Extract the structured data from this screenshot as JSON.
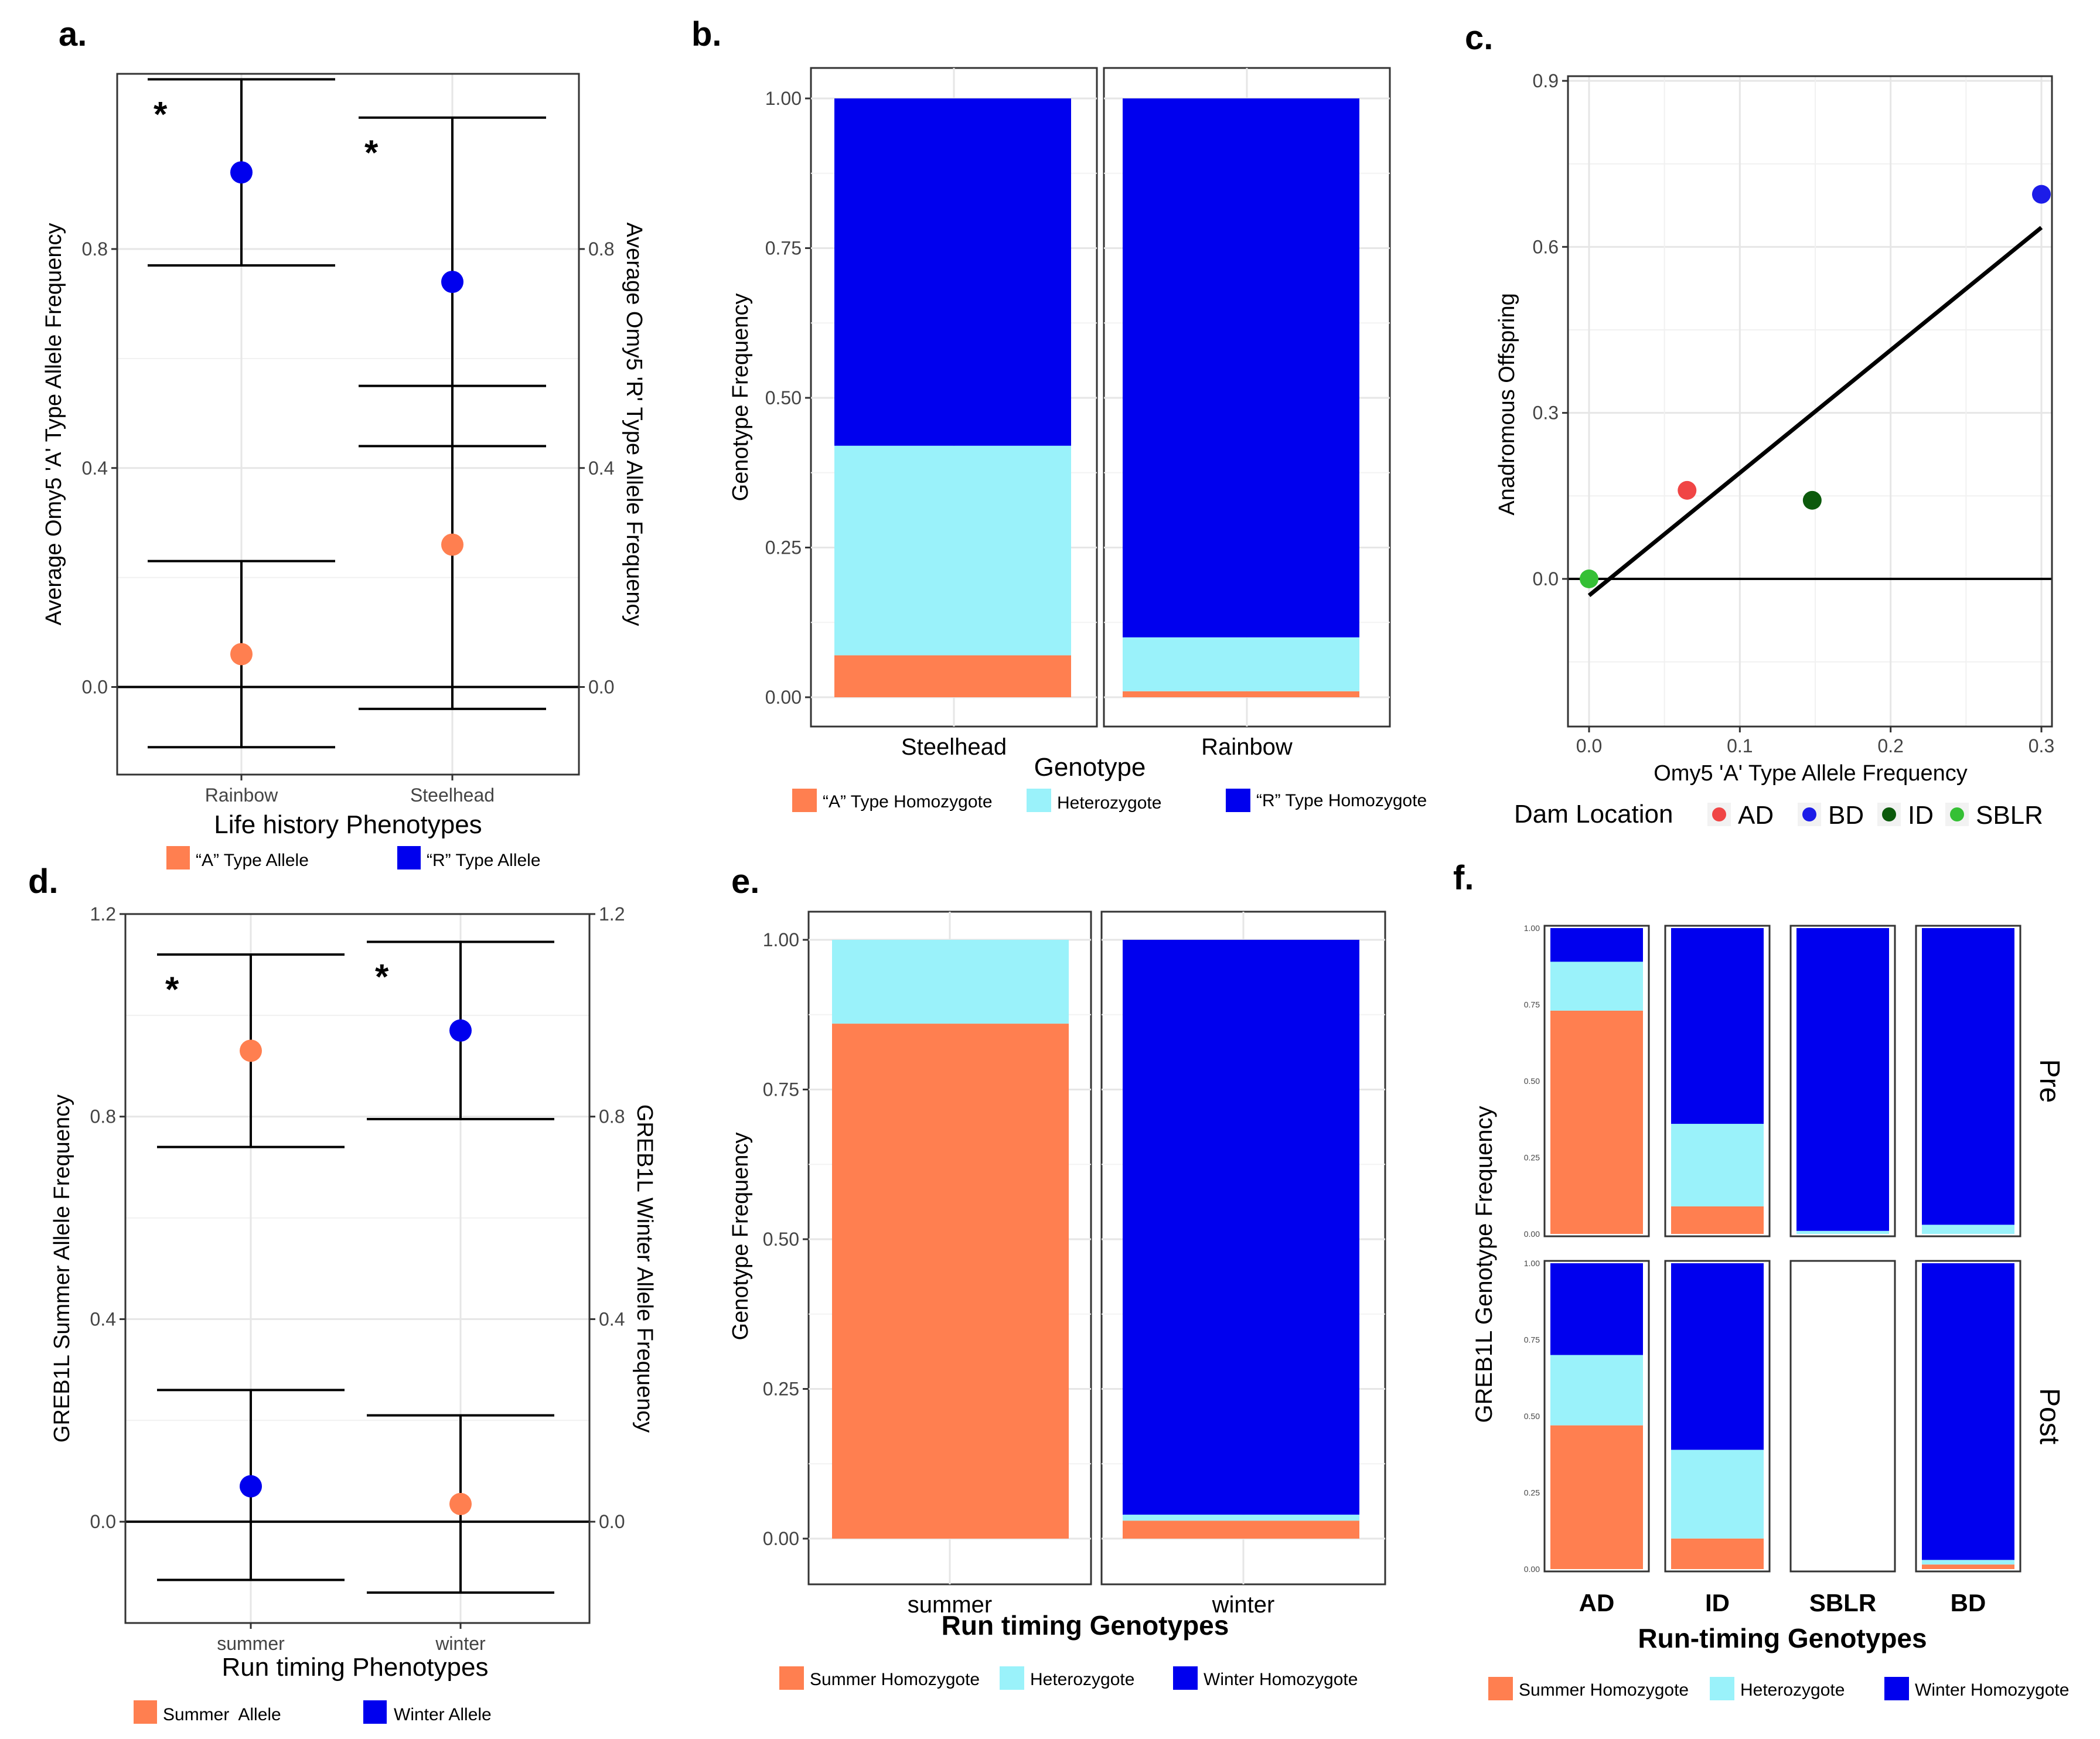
{
  "colors": {
    "orange": "#FF7F50",
    "cyan": "#9AF2FA",
    "blue": "#0000EE",
    "dam_AD": "#F04545",
    "dam_BD": "#1C1CE8",
    "dam_ID": "#0C5A0C",
    "dam_SBLR": "#35C035",
    "grid": "#E6E6E6"
  },
  "panel_labels": {
    "a": "a.",
    "b": "b.",
    "c": "c.",
    "d": "d.",
    "e": "e.",
    "f": "f."
  },
  "chart_data": [
    {
      "id": "a",
      "type": "scatter",
      "subtype": "points-with-error-bars",
      "xlabel": "Life history Phenotypes",
      "ylabel_left": "Average Omy5 'A' Type Allele Frequency",
      "ylabel_right": "Average Omy5 'R' Type Allele Frequency",
      "categories": [
        "Rainbow",
        "Steelhead"
      ],
      "yticks": [
        "0.0",
        "0.4",
        "0.8"
      ],
      "ylim": [
        -0.16,
        1.12
      ],
      "series": [
        {
          "name": "“A” Type Allele",
          "color_key": "orange",
          "values": [
            0.06,
            0.26
          ],
          "ci_low": [
            -0.11,
            -0.04
          ],
          "ci_high": [
            0.23,
            0.55
          ]
        },
        {
          "name": "“R” Type Allele",
          "color_key": "blue",
          "values": [
            0.94,
            0.74
          ],
          "ci_low": [
            0.77,
            0.44
          ],
          "ci_high": [
            1.11,
            1.04
          ]
        }
      ],
      "significance": [
        "*",
        "*"
      ],
      "legend": [
        {
          "label": "“A” Type Allele",
          "color_key": "orange"
        },
        {
          "label": "“R” Type Allele",
          "color_key": "blue"
        }
      ]
    },
    {
      "id": "b",
      "type": "bar",
      "subtype": "stacked-100",
      "xlabel": "Genotype",
      "ylabel": "Genotype Frequency",
      "facets": [
        "Steelhead",
        "Rainbow"
      ],
      "yticks": [
        "0.00",
        "0.25",
        "0.50",
        "0.75",
        "1.00"
      ],
      "ylim": [
        0,
        1
      ],
      "series": [
        {
          "name": "“A” Type Homozygote",
          "color_key": "orange",
          "values": [
            0.07,
            0.01
          ]
        },
        {
          "name": "Heterozygote",
          "color_key": "cyan",
          "values": [
            0.35,
            0.09
          ]
        },
        {
          "name": "“R” Type Homozygote",
          "color_key": "blue",
          "values": [
            0.58,
            0.9
          ]
        }
      ],
      "legend": [
        {
          "label": "“A” Type Homozygote",
          "color_key": "orange"
        },
        {
          "label": "Heterozygote",
          "color_key": "cyan"
        },
        {
          "label": "“R” Type Homozygote",
          "color_key": "blue"
        }
      ]
    },
    {
      "id": "c",
      "type": "scatter",
      "xlabel": "Omy5 'A' Type Allele Frequency",
      "ylabel": "Anadromous Offspring",
      "xlim": [
        -0.015,
        0.31
      ],
      "ylim": [
        -0.25,
        0.91
      ],
      "xticks": [
        "0.0",
        "0.1",
        "0.2",
        "0.3"
      ],
      "yticks": [
        "0.0",
        "0.3",
        "0.6",
        "0.9"
      ],
      "points": [
        {
          "label": "AD",
          "x": 0.065,
          "y": 0.16,
          "color_key": "dam_AD"
        },
        {
          "label": "BD",
          "x": 0.3,
          "y": 0.695,
          "color_key": "dam_BD"
        },
        {
          "label": "ID",
          "x": 0.148,
          "y": 0.142,
          "color_key": "dam_ID"
        },
        {
          "label": "SBLR",
          "x": 0.0,
          "y": 0.0,
          "color_key": "dam_SBLR"
        }
      ],
      "fit_line": {
        "x": [
          0.0,
          0.3
        ],
        "y": [
          -0.03,
          0.635
        ]
      },
      "legend_title": "Dam Location",
      "legend": [
        {
          "label": "AD",
          "color_key": "dam_AD"
        },
        {
          "label": "BD",
          "color_key": "dam_BD"
        },
        {
          "label": "ID",
          "color_key": "dam_ID"
        },
        {
          "label": "SBLR",
          "color_key": "dam_SBLR"
        }
      ]
    },
    {
      "id": "d",
      "type": "scatter",
      "subtype": "points-with-error-bars",
      "xlabel": "Run timing Phenotypes",
      "ylabel_left": "GREB1L Summer Allele Frequency",
      "ylabel_right": "GREB1L Winter Allele Frequency",
      "categories": [
        "summer",
        "winter"
      ],
      "yticks": [
        "0.0",
        "0.4",
        "0.8",
        "1.2"
      ],
      "ylim": [
        -0.2,
        1.2
      ],
      "series": [
        {
          "name": "Summer Allele",
          "color_key": "orange",
          "values": [
            0.93,
            0.035
          ],
          "ci_low": [
            0.74,
            -0.14
          ],
          "ci_high": [
            1.12,
            0.21
          ]
        },
        {
          "name": "Winter Allele",
          "color_key": "blue",
          "values": [
            0.07,
            0.97
          ],
          "ci_low": [
            -0.115,
            0.795
          ],
          "ci_high": [
            0.26,
            1.145
          ]
        }
      ],
      "significance": [
        "*",
        "*"
      ],
      "legend": [
        {
          "label": "Summer  Allele",
          "color_key": "orange"
        },
        {
          "label": "Winter Allele",
          "color_key": "blue"
        }
      ]
    },
    {
      "id": "e",
      "type": "bar",
      "subtype": "stacked-100",
      "xlabel": "Run timing Genotypes",
      "ylabel": "Genotype Frequency",
      "facets": [
        "summer",
        "winter"
      ],
      "yticks": [
        "0.00",
        "0.25",
        "0.50",
        "0.75",
        "1.00"
      ],
      "ylim": [
        0,
        1
      ],
      "series": [
        {
          "name": "Summer Homozygote",
          "color_key": "orange",
          "values": [
            0.86,
            0.03
          ]
        },
        {
          "name": "Heterozygote",
          "color_key": "cyan",
          "values": [
            0.14,
            0.01
          ]
        },
        {
          "name": "Winter Homozygote",
          "color_key": "blue",
          "values": [
            0.0,
            0.96
          ]
        }
      ],
      "legend": [
        {
          "label": "Summer Homozygote",
          "color_key": "orange"
        },
        {
          "label": "Heterozygote",
          "color_key": "cyan"
        },
        {
          "label": "Winter Homozygote",
          "color_key": "blue"
        }
      ]
    },
    {
      "id": "f",
      "type": "bar",
      "subtype": "stacked-100-faceted",
      "xlabel": "Run-timing Genotypes",
      "ylabel": "GREB1L Genotype Frequency",
      "columns": [
        "AD",
        "ID",
        "SBLR",
        "BD"
      ],
      "rows": [
        "Pre",
        "Post"
      ],
      "yticks": [
        "0.00",
        "0.25",
        "0.50",
        "0.75",
        "1.00"
      ],
      "ylim": [
        0,
        1
      ],
      "cells": [
        [
          {
            "summer": 0.73,
            "het": 0.16,
            "winter": 0.11
          },
          {
            "summer": 0.09,
            "het": 0.27,
            "winter": 0.64
          },
          {
            "summer": 0.0,
            "het": 0.01,
            "winter": 0.99
          },
          {
            "summer": 0.0,
            "het": 0.03,
            "winter": 0.97
          }
        ],
        [
          {
            "summer": 0.47,
            "het": 0.23,
            "winter": 0.3
          },
          {
            "summer": 0.1,
            "het": 0.29,
            "winter": 0.61
          },
          null,
          {
            "summer": 0.015,
            "het": 0.015,
            "winter": 0.97
          }
        ]
      ],
      "legend": [
        {
          "label": "Summer Homozygote",
          "color_key": "orange"
        },
        {
          "label": "Heterozygote",
          "color_key": "cyan"
        },
        {
          "label": "Winter Homozygote",
          "color_key": "blue"
        }
      ]
    }
  ]
}
